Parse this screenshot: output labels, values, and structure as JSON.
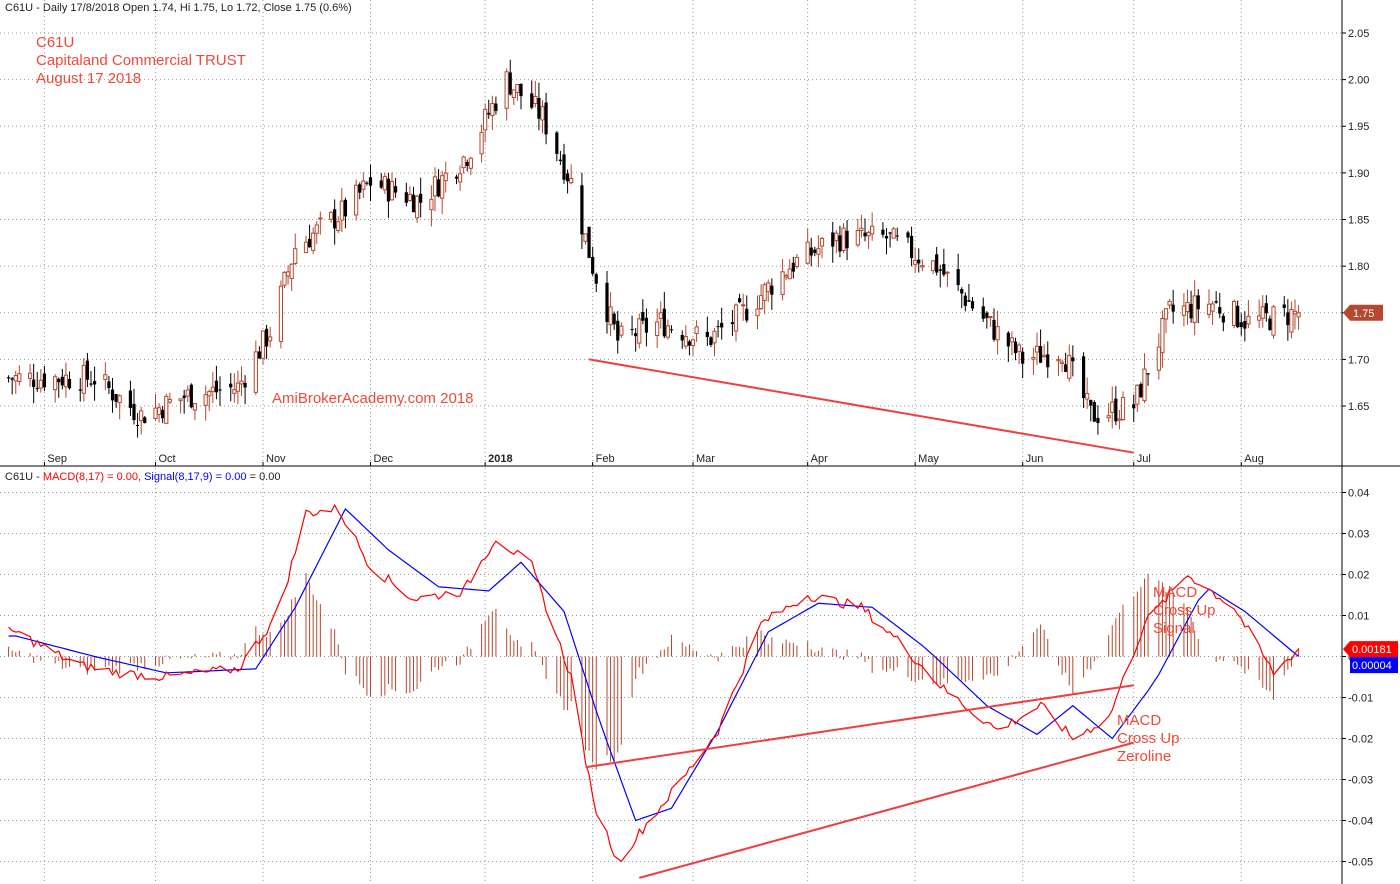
{
  "price_panel": {
    "header": "C61U - Daily 17/8/2018 Open 1.74, Hi 1.75, Lo 1.72, Close 1.75 (0.6%)",
    "last_price_label": "1.75",
    "title_lines": [
      "C61U",
      "Capitaland Commercial TRUST",
      "August 17 2018"
    ],
    "watermark": "AmiBrokerAcademy.com  2018"
  },
  "macd_panel": {
    "header_symbol": "C61U - ",
    "header_macd": "MACD(8,17) = 0.00, ",
    "header_signal": "Signal(8,17,9) = 0.00",
    "header_suffix": " = 0.00",
    "macd_value_label": "0.00181",
    "signal_value_label": "0.00004",
    "annotation_signal": [
      "MACD",
      "Cross Up",
      "Signal"
    ],
    "annotation_zero": [
      "MACD",
      "Cross Up",
      "Zeroline"
    ]
  },
  "colors": {
    "up_candle": "#b5482e",
    "down_candle": "#000000",
    "macd_line": "#ff0000",
    "signal_line": "#0000ff",
    "histogram": "#b5482e",
    "annotation": "#f04a3a",
    "price_tag": "#b5482e",
    "macd_tag": "#ff0000",
    "signal_tag": "#0000ff"
  },
  "chart_data": [
    {
      "type": "candlestick",
      "y_ticks": [
        1.65,
        1.7,
        1.75,
        1.8,
        1.85,
        1.9,
        1.95,
        2.0,
        2.05
      ],
      "ylim": [
        1.59,
        2.08
      ],
      "x_months": [
        "Sep",
        "Oct",
        "Nov",
        "Dec",
        "2018",
        "Feb",
        "Mar",
        "Apr",
        "May",
        "Jun",
        "Jul",
        "Aug"
      ],
      "close_path_anchors": [
        [
          "2017-08-24",
          1.68
        ],
        [
          "2017-09-05",
          1.68
        ],
        [
          "2017-09-15",
          1.68
        ],
        [
          "2017-09-28",
          1.64
        ],
        [
          "2017-10-10",
          1.66
        ],
        [
          "2017-10-25",
          1.67
        ],
        [
          "2017-11-03",
          1.73
        ],
        [
          "2017-11-10",
          1.82
        ],
        [
          "2017-11-24",
          1.86
        ],
        [
          "2017-12-01",
          1.89
        ],
        [
          "2017-12-15",
          1.87
        ],
        [
          "2017-12-28",
          1.92
        ],
        [
          "2018-01-08",
          2.0
        ],
        [
          "2018-01-18",
          1.96
        ],
        [
          "2018-01-26",
          1.89
        ],
        [
          "2018-02-01",
          1.8
        ],
        [
          "2018-02-08",
          1.72
        ],
        [
          "2018-02-20",
          1.74
        ],
        [
          "2018-03-05",
          1.72
        ],
        [
          "2018-03-15",
          1.75
        ],
        [
          "2018-03-28",
          1.8
        ],
        [
          "2018-04-10",
          1.83
        ],
        [
          "2018-04-24",
          1.83
        ],
        [
          "2018-05-08",
          1.8
        ],
        [
          "2018-05-22",
          1.74
        ],
        [
          "2018-06-01",
          1.7
        ],
        [
          "2018-06-12",
          1.71
        ],
        [
          "2018-06-20",
          1.64
        ],
        [
          "2018-07-02",
          1.65
        ],
        [
          "2018-07-12",
          1.75
        ],
        [
          "2018-07-24",
          1.76
        ],
        [
          "2018-08-03",
          1.74
        ],
        [
          "2018-08-17",
          1.75
        ]
      ],
      "price_trendline": {
        "from": [
          "2018-01-31",
          1.7
        ],
        "to": [
          "2018-07-02",
          1.6
        ]
      }
    },
    {
      "type": "line",
      "y_ticks": [
        -0.05,
        -0.04,
        -0.03,
        -0.02,
        -0.01,
        0.0,
        0.01,
        0.02,
        0.03,
        0.04
      ],
      "ylim": [
        -0.055,
        0.045
      ],
      "series": [
        {
          "name": "MACD(8,17)",
          "points": [
            [
              "2017-08-24",
              0.006
            ],
            [
              "2017-09-10",
              -0.002
            ],
            [
              "2017-09-22",
              -0.004
            ],
            [
              "2017-10-05",
              -0.005
            ],
            [
              "2017-10-25",
              -0.003
            ],
            [
              "2017-11-05",
              0.01
            ],
            [
              "2017-11-13",
              0.035
            ],
            [
              "2017-11-22",
              0.036
            ],
            [
              "2017-12-01",
              0.022
            ],
            [
              "2017-12-13",
              0.014
            ],
            [
              "2017-12-27",
              0.016
            ],
            [
              "2018-01-05",
              0.029
            ],
            [
              "2018-01-15",
              0.022
            ],
            [
              "2018-01-26",
              -0.005
            ],
            [
              "2018-02-01",
              -0.035
            ],
            [
              "2018-02-08",
              -0.05
            ],
            [
              "2018-02-15",
              -0.042
            ],
            [
              "2018-02-26",
              -0.03
            ],
            [
              "2018-03-08",
              -0.018
            ],
            [
              "2018-03-20",
              0.008
            ],
            [
              "2018-04-02",
              0.015
            ],
            [
              "2018-04-17",
              0.012
            ],
            [
              "2018-04-27",
              0.004
            ],
            [
              "2018-05-10",
              -0.008
            ],
            [
              "2018-05-25",
              -0.018
            ],
            [
              "2018-06-06",
              -0.012
            ],
            [
              "2018-06-15",
              -0.02
            ],
            [
              "2018-06-25",
              -0.015
            ],
            [
              "2018-07-05",
              0.008
            ],
            [
              "2018-07-17",
              0.02
            ],
            [
              "2018-07-30",
              0.012
            ],
            [
              "2018-08-10",
              -0.004
            ],
            [
              "2018-08-17",
              0.0018
            ]
          ]
        },
        {
          "name": "Signal(8,17,9)",
          "points": [
            [
              "2017-08-24",
              0.005
            ],
            [
              "2017-09-15",
              0.0
            ],
            [
              "2017-10-05",
              -0.004
            ],
            [
              "2017-10-30",
              -0.003
            ],
            [
              "2017-11-10",
              0.012
            ],
            [
              "2017-11-24",
              0.036
            ],
            [
              "2017-12-06",
              0.026
            ],
            [
              "2017-12-20",
              0.017
            ],
            [
              "2018-01-03",
              0.016
            ],
            [
              "2018-01-12",
              0.023
            ],
            [
              "2018-01-24",
              0.011
            ],
            [
              "2018-02-03",
              -0.016
            ],
            [
              "2018-02-13",
              -0.04
            ],
            [
              "2018-02-23",
              -0.037
            ],
            [
              "2018-03-08",
              -0.018
            ],
            [
              "2018-03-22",
              0.006
            ],
            [
              "2018-04-05",
              0.013
            ],
            [
              "2018-04-20",
              0.012
            ],
            [
              "2018-05-05",
              0.002
            ],
            [
              "2018-05-22",
              -0.012
            ],
            [
              "2018-06-05",
              -0.019
            ],
            [
              "2018-06-15",
              -0.012
            ],
            [
              "2018-06-26",
              -0.02
            ],
            [
              "2018-07-08",
              -0.006
            ],
            [
              "2018-07-22",
              0.017
            ],
            [
              "2018-08-02",
              0.011
            ],
            [
              "2018-08-17",
              0.0
            ]
          ]
        }
      ],
      "trendlines": [
        {
          "from": [
            "2018-01-30",
            -0.027
          ],
          "to": [
            "2018-07-02",
            -0.007
          ]
        },
        {
          "from": [
            "2018-02-14",
            -0.054
          ],
          "to": [
            "2018-07-02",
            -0.021
          ]
        }
      ]
    }
  ]
}
